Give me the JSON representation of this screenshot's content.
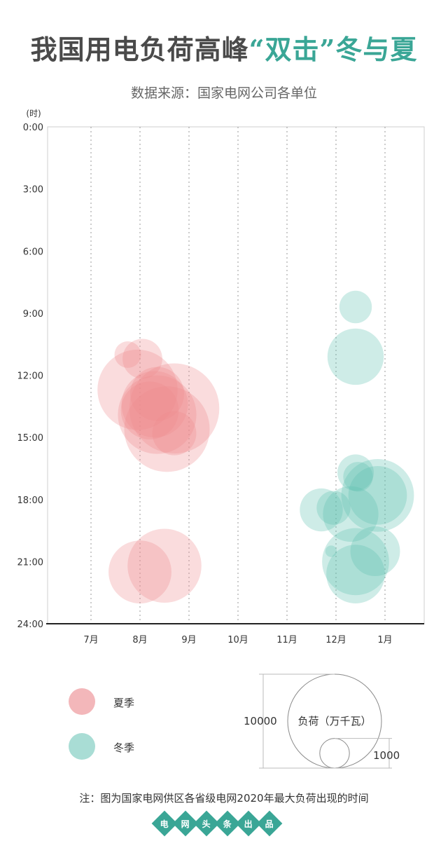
{
  "title": {
    "part1": "我国用电负荷高峰",
    "part2": "“双击”",
    "part3": "冬与夏"
  },
  "subtitle": "数据来源：国家电网公司各单位",
  "chart_data": {
    "type": "scatter",
    "title": "我国用电负荷高峰“双击”冬与夏",
    "ylabel": "(时)",
    "yticks": [
      "0:00",
      "3:00",
      "6:00",
      "9:00",
      "12:00",
      "15:00",
      "18:00",
      "21:00",
      "24:00"
    ],
    "ylim": [
      0,
      24
    ],
    "xticks": [
      "7月",
      "8月",
      "9月",
      "10月",
      "11月",
      "12月",
      "1月"
    ],
    "grid": "vertical dotted",
    "size_unit": "负荷（万千瓦）",
    "series": [
      {
        "name": "夏季",
        "color": "#f08a8f",
        "points": [
          {
            "month": 8.7,
            "hour": 13.6,
            "load": 9200
          },
          {
            "month": 8.55,
            "hour": 14.6,
            "load": 8300
          },
          {
            "month": 7.95,
            "hour": 12.7,
            "load": 7300
          },
          {
            "month": 8.35,
            "hour": 13.9,
            "load": 7000
          },
          {
            "month": 8.3,
            "hour": 13.4,
            "load": 5000
          },
          {
            "month": 8.2,
            "hour": 13.7,
            "load": 3800
          },
          {
            "month": 8.35,
            "hour": 12.9,
            "load": 3300
          },
          {
            "month": 8.7,
            "hour": 14.8,
            "load": 2200
          },
          {
            "month": 8.05,
            "hour": 11.2,
            "load": 1800
          },
          {
            "month": 7.75,
            "hour": 11.0,
            "load": 800
          },
          {
            "month": 8.5,
            "hour": 21.2,
            "load": 6200
          },
          {
            "month": 8.0,
            "hour": 21.5,
            "load": 4500
          }
        ]
      },
      {
        "name": "冬季",
        "color": "#5cbfb0",
        "points": [
          {
            "month": 12.4,
            "hour": 8.7,
            "load": 1200
          },
          {
            "month": 12.4,
            "hour": 11.1,
            "load": 3600
          },
          {
            "month": 12.4,
            "hour": 16.7,
            "load": 1500
          },
          {
            "month": 12.45,
            "hour": 16.9,
            "load": 1000
          },
          {
            "month": 12.85,
            "hour": 17.8,
            "load": 6000
          },
          {
            "month": 12.85,
            "hour": 17.8,
            "load": 3900
          },
          {
            "month": 12.3,
            "hour": 18.7,
            "load": 3500
          },
          {
            "month": 11.7,
            "hour": 18.5,
            "load": 2100
          },
          {
            "month": 11.95,
            "hour": 18.4,
            "load": 1300
          },
          {
            "month": 12.8,
            "hour": 20.5,
            "load": 2800
          },
          {
            "month": 12.4,
            "hour": 21.0,
            "load": 5100
          },
          {
            "month": 12.4,
            "hour": 21.6,
            "load": 3900
          },
          {
            "month": 11.9,
            "hour": 20.5,
            "load": 150
          }
        ]
      }
    ],
    "size_legend": {
      "large_value": "10000",
      "small_value": "1000",
      "label": "负荷（万千瓦）"
    }
  },
  "legend": [
    {
      "label": "夏季",
      "color": "#f3b7ba"
    },
    {
      "label": "冬季",
      "color": "#a9ddd5"
    }
  ],
  "note": "注：图为国家电网供区各省级电网2020年最大负荷出现的时间",
  "footer": [
    "电",
    "网",
    "头",
    "条",
    "出",
    "品"
  ]
}
